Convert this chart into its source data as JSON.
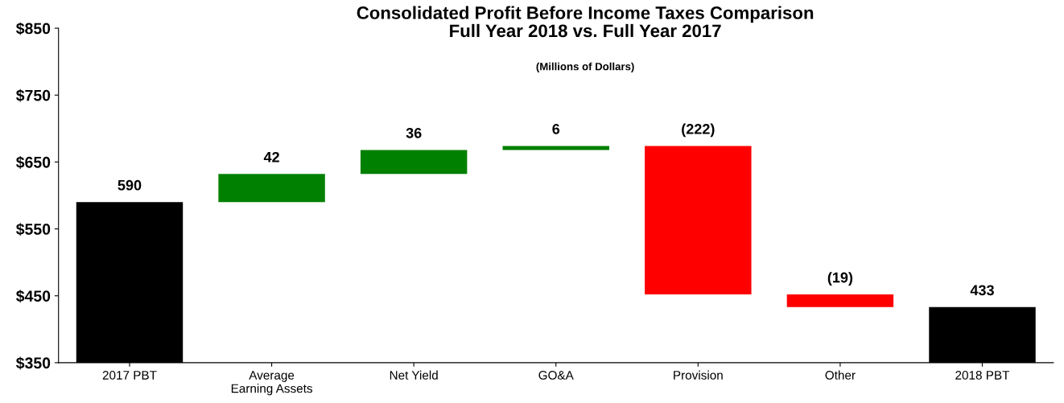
{
  "chart_data": {
    "type": "bar",
    "title": "Consolidated Profit Before Income Taxes Comparison\nFull Year 2018 vs. Full Year 2017",
    "subtitle": "(Millions of Dollars)",
    "categories": [
      "2017 PBT",
      "Average\nEarning Assets",
      "Net Yield",
      "GO&A",
      "Provision",
      "Other",
      "2018 PBT"
    ],
    "values": [
      590,
      42,
      36,
      6,
      -222,
      -19,
      433
    ],
    "base": [
      0,
      590,
      632,
      668,
      674,
      452,
      0
    ],
    "colors": [
      "#000000",
      "#008000",
      "#008000",
      "#008000",
      "#ff0000",
      "#ff0000",
      "#000000"
    ],
    "value_labels": [
      "590",
      "42",
      "36",
      "6",
      "(222)",
      "(19)",
      "433"
    ],
    "ylim": [
      350,
      850
    ],
    "yticks": [
      {
        "value": 350,
        "label": "$350"
      },
      {
        "value": 450,
        "label": "$450"
      },
      {
        "value": 550,
        "label": "$550"
      },
      {
        "value": 650,
        "label": "$650"
      },
      {
        "value": 750,
        "label": "$750"
      },
      {
        "value": 850,
        "label": "$850"
      }
    ],
    "grid": false,
    "legend": false
  }
}
